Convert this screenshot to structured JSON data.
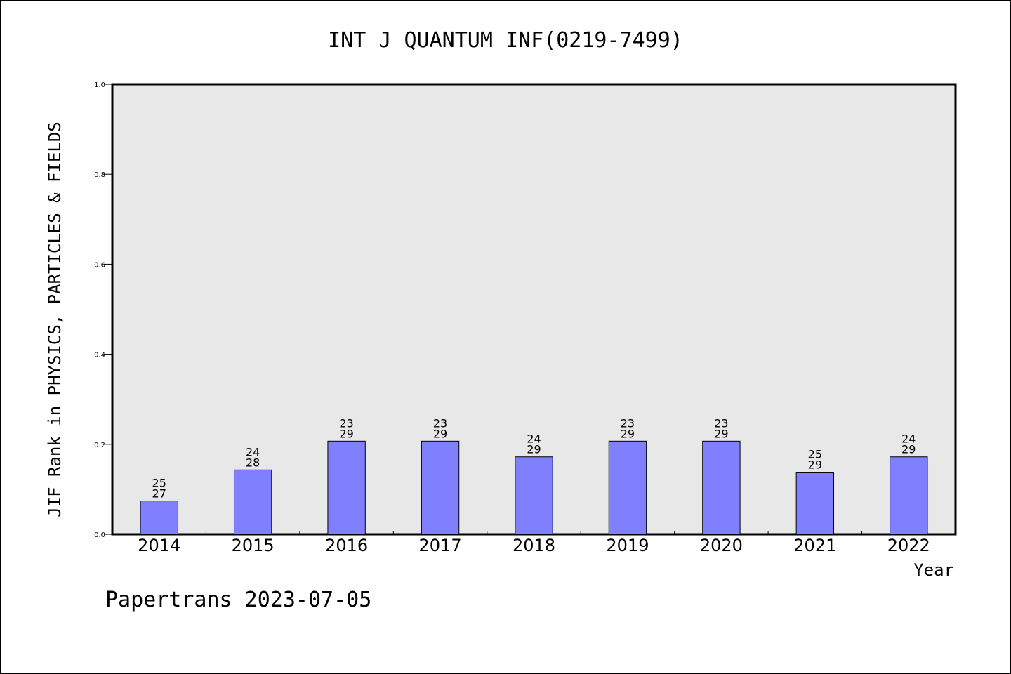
{
  "chart_data": {
    "type": "bar",
    "title": "INT J QUANTUM INF(0219-7499)",
    "xlabel": "Year",
    "ylabel": "JIF Rank in PHYSICS, PARTICLES & FIELDS",
    "ylim": [
      0,
      1.0
    ],
    "yticks": [
      "0.0",
      "0.2",
      "0.4",
      "0.6",
      "0.8",
      "1.0"
    ],
    "categories": [
      "2014",
      "2015",
      "2016",
      "2017",
      "2018",
      "2019",
      "2020",
      "2021",
      "2022"
    ],
    "values": [
      0.074,
      0.143,
      0.207,
      0.207,
      0.172,
      0.207,
      0.207,
      0.138,
      0.172
    ],
    "rank": [
      "25",
      "24",
      "23",
      "23",
      "24",
      "23",
      "23",
      "25",
      "24"
    ],
    "total": [
      "27",
      "28",
      "29",
      "29",
      "29",
      "29",
      "29",
      "29",
      "29"
    ],
    "bar_color": "#8080ff",
    "plot_bg": "#e8e8e8",
    "grid": false
  },
  "footer": "Papertrans 2023-07-05"
}
